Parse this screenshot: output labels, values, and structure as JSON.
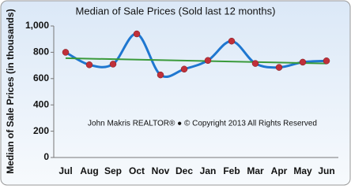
{
  "chart_data": {
    "type": "line",
    "title": "Median of Sale Prices (Sold last 12 months)",
    "y_label": "Median of Sale Prices (in thousands)",
    "annotation": "John Makris REALTOR®  ●  © Copyright 2013 All Rights Reserved",
    "categories": [
      "Jul",
      "Aug",
      "Sep",
      "Oct",
      "Nov",
      "Dec",
      "Jan",
      "Feb",
      "Mar",
      "Apr",
      "May",
      "Jun"
    ],
    "series": [
      {
        "name": "Median Sale Price",
        "color": "#1f77d0",
        "marker_color": "#c0303a",
        "values": [
          800,
          705,
          710,
          940,
          628,
          672,
          738,
          885,
          715,
          685,
          725,
          735
        ]
      }
    ],
    "trendline": {
      "color": "#3a9a3a",
      "values": [
        755,
        715
      ]
    },
    "ylim": [
      0,
      1000
    ],
    "yticks": [
      0,
      200,
      400,
      600,
      800,
      {
        "value": 1000,
        "label": "1,000"
      }
    ],
    "grid": false
  }
}
